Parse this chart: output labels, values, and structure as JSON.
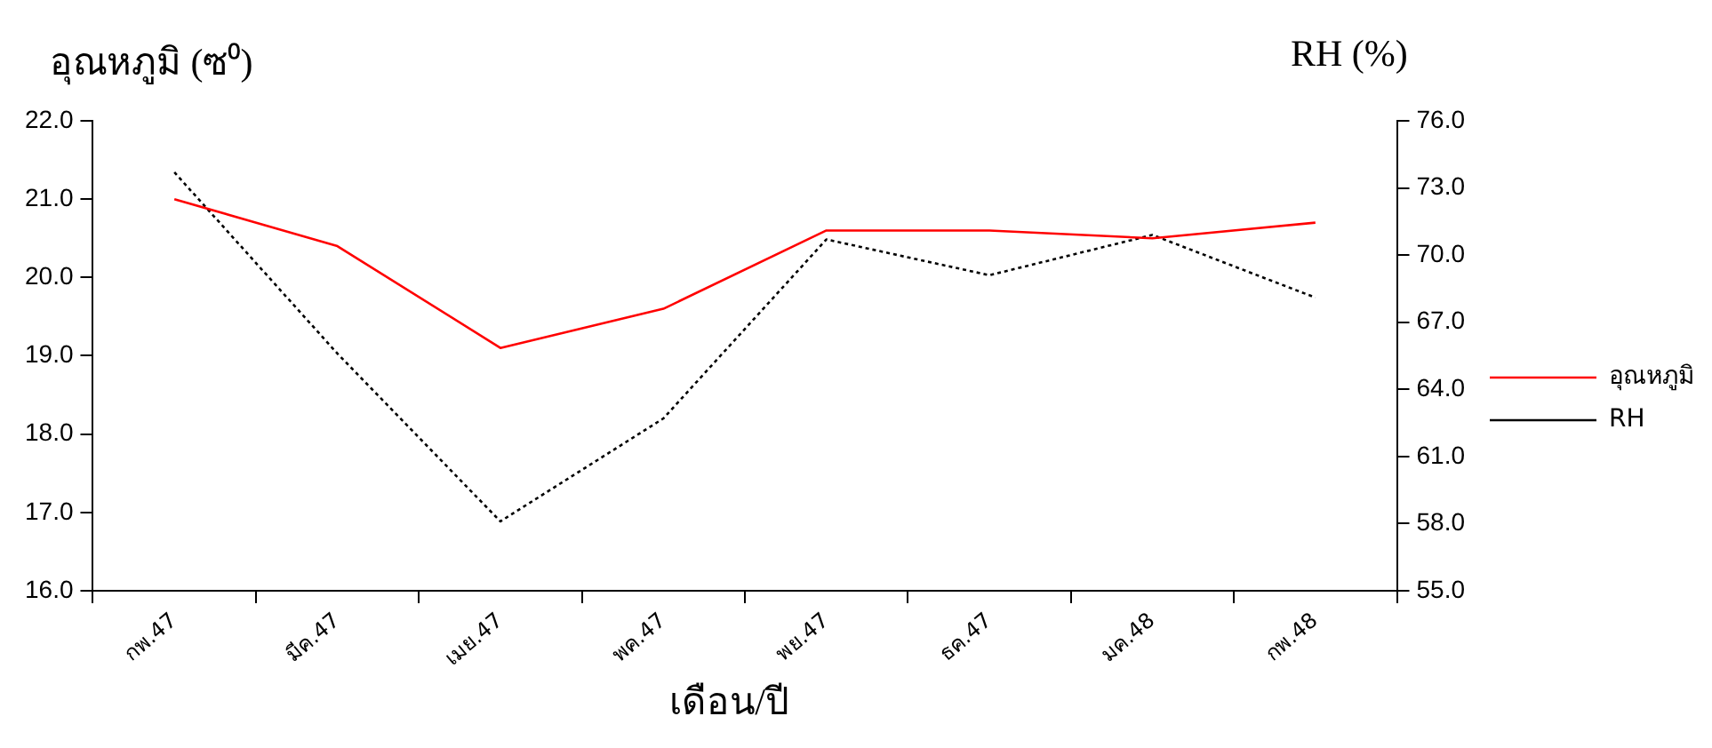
{
  "chart_data": {
    "type": "line",
    "ylabel": "อุณหภูมิ (ซ⁰)",
    "y2label": "RH (%)",
    "xlabel": "เดือน/ปี",
    "categories": [
      "กพ.47",
      "มีค.47",
      "เมย.47",
      "พค.47",
      "พย.47",
      "ธค.47",
      "มค.48",
      "กพ.48"
    ],
    "series": [
      {
        "name": "อุณหภูมิ",
        "color": "#ff0000",
        "line_style": "solid",
        "values": [
          21.0,
          20.4,
          19.1,
          19.6,
          20.6,
          20.6,
          20.5,
          20.7
        ]
      },
      {
        "name": "RH",
        "color": "#000000",
        "line_style": "dotted",
        "axis": "y2",
        "values": [
          73.7,
          65.6,
          58.1,
          62.7,
          70.7,
          69.1,
          70.9,
          68.1
        ]
      }
    ],
    "ylim": [
      16,
      22
    ],
    "yticks": [
      {
        "value": 16,
        "label": "16.0"
      },
      {
        "value": 17,
        "label": "17.0"
      },
      {
        "value": 18,
        "label": "18.0"
      },
      {
        "value": 19,
        "label": "19.0"
      },
      {
        "value": 20,
        "label": "20.0"
      },
      {
        "value": 21,
        "label": "21.0"
      },
      {
        "value": 22,
        "label": "22.0"
      }
    ],
    "y2lim": [
      55,
      76
    ],
    "y2ticks": [
      {
        "value": 55,
        "label": "55.0"
      },
      {
        "value": 58,
        "label": "58.0"
      },
      {
        "value": 61,
        "label": "61.0"
      },
      {
        "value": 64,
        "label": "64.0"
      },
      {
        "value": 67,
        "label": "67.0"
      },
      {
        "value": 70,
        "label": "70.0"
      },
      {
        "value": 73,
        "label": "73.0"
      },
      {
        "value": 76,
        "label": "76.0"
      }
    ],
    "grid": false,
    "legend": "right",
    "marker": "none"
  }
}
